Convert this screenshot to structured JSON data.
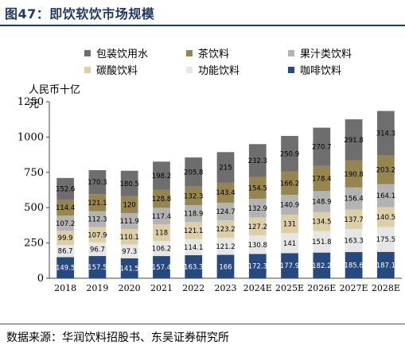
{
  "header": {
    "title": "图47：即饮软饮市场规模"
  },
  "footer": {
    "source": "数据来源：华润饮料招股书、东吴证券研究所"
  },
  "chart_data": {
    "type": "bar",
    "stacked": true,
    "ylabel": "人民币十亿元",
    "ylim": [
      0,
      1250
    ],
    "yticks": [
      0,
      250,
      500,
      750,
      1000,
      1250
    ],
    "categories": [
      "2018",
      "2019",
      "2020",
      "2021",
      "2022",
      "2023",
      "2024E",
      "2025E",
      "2026E",
      "2027E",
      "2028E"
    ],
    "series": [
      {
        "name": "咖啡饮料",
        "color": "#264a80",
        "labelColor": "#ffffff",
        "values": [
          149.5,
          157.5,
          141.5,
          157.4,
          163.3,
          166.0,
          172.3,
          177.9,
          182.2,
          185.6,
          187.1
        ]
      },
      {
        "name": "功能饮料",
        "color": "#e6e6e6",
        "labelColor": "#000000",
        "values": [
          86.7,
          96.7,
          97.3,
          106.2,
          114.1,
          121.2,
          130.8,
          141.0,
          151.8,
          163.3,
          175.5
        ]
      },
      {
        "name": "碳酸饮料",
        "color": "#dccfa8",
        "labelColor": "#000000",
        "values": [
          99.9,
          107.9,
          110.1,
          118,
          121.1,
          123.2,
          127.2,
          131,
          134.5,
          137.7,
          140.5
        ]
      },
      {
        "name": "果汁类饮料",
        "color": "#b3b3b3",
        "labelColor": "#000000",
        "values": [
          107.2,
          112.3,
          111.9,
          117.4,
          118.9,
          124.7,
          132.9,
          140.9,
          148.9,
          156.4,
          164.1
        ]
      },
      {
        "name": "茶饮料",
        "color": "#978550",
        "labelColor": "#000000",
        "values": [
          114.4,
          121.1,
          120,
          128.8,
          132.3,
          143.4,
          154.5,
          166.2,
          178.4,
          190.8,
          203.2
        ]
      },
      {
        "name": "包装饮用水",
        "color": "#6e6e6e",
        "labelColor": "#000000",
        "values": [
          152.6,
          170.3,
          180.5,
          198.2,
          205.8,
          215.0,
          232.3,
          250.9,
          270.7,
          291.8,
          314.3
        ]
      }
    ],
    "legend_order": [
      "包装饮用水",
      "茶饮料",
      "果汁类饮料",
      "碳酸饮料",
      "功能饮料",
      "咖啡饮料"
    ],
    "legend_position": "top",
    "grid": false
  }
}
